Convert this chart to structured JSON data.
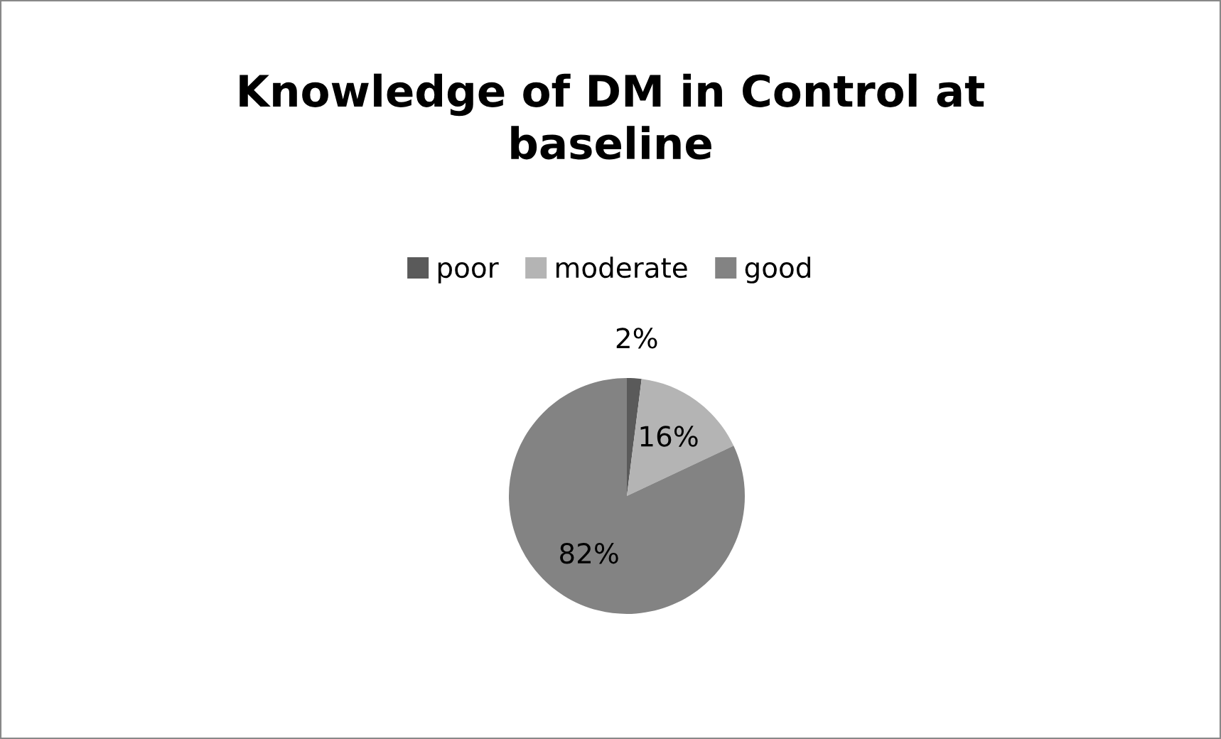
{
  "chart_data": {
    "type": "pie",
    "title": "Knowledge of DM in Control at\nbaseline",
    "categories": [
      "poor",
      "moderate",
      "good"
    ],
    "values": [
      2,
      16,
      82
    ],
    "value_labels": [
      "2%",
      "16%",
      "82%"
    ],
    "colors": [
      "#5a5a5a",
      "#b4b4b4",
      "#838383"
    ],
    "legend": "top"
  }
}
